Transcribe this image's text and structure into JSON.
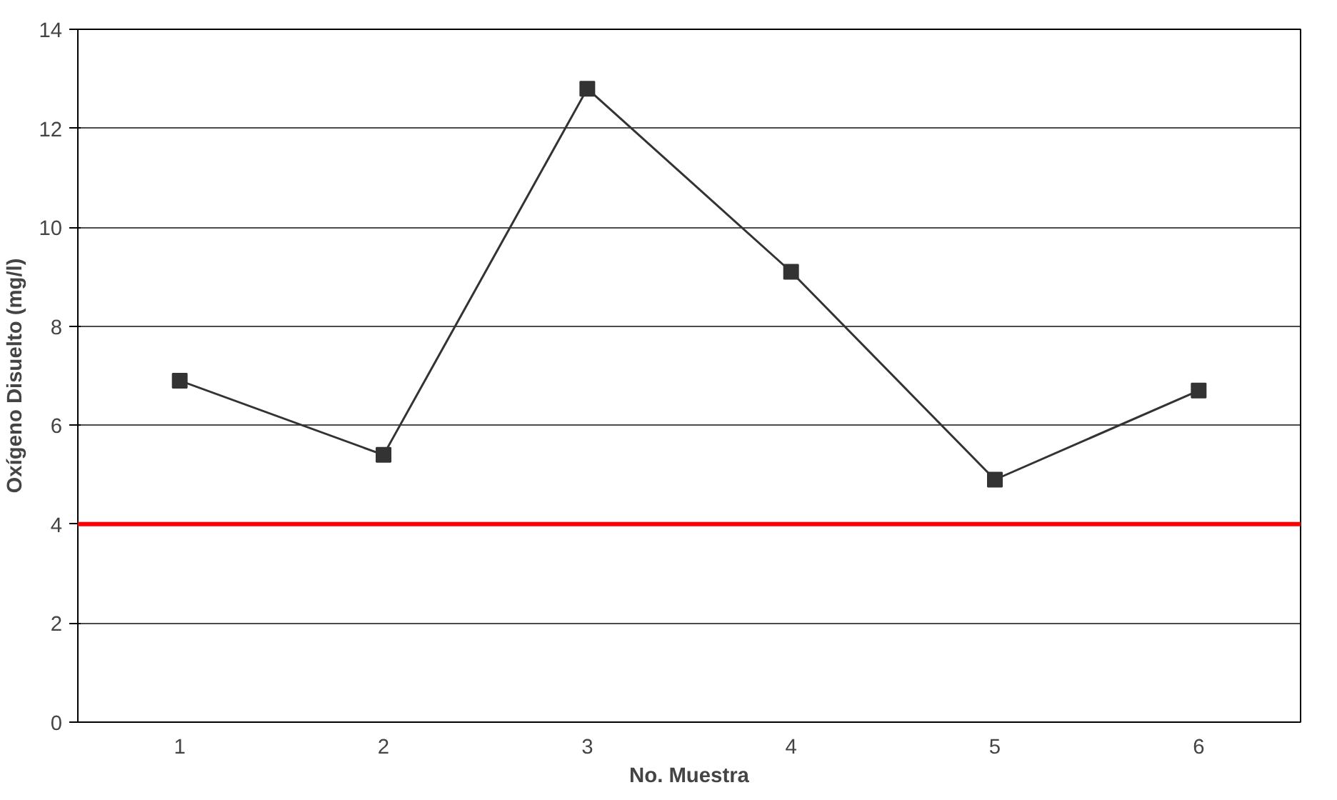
{
  "chart_data": {
    "type": "line",
    "xlabel": "No. Muestra",
    "ylabel": "Oxígeno Disuelto (mg/l)",
    "categories": [
      "1",
      "2",
      "3",
      "4",
      "5",
      "6"
    ],
    "series": [
      {
        "color": "#333333",
        "values": [
          6.9,
          5.4,
          12.8,
          9.1,
          4.9,
          6.7
        ]
      }
    ],
    "ylim": [
      0,
      14
    ],
    "yticks": [
      0,
      2,
      4,
      6,
      8,
      10,
      12,
      14
    ],
    "grid": "y",
    "marker": "square",
    "line_style": "solid",
    "ref_lines": [
      {
        "axis": "y",
        "value": 4,
        "color": "#ff0000",
        "line_style": "solid"
      }
    ]
  }
}
